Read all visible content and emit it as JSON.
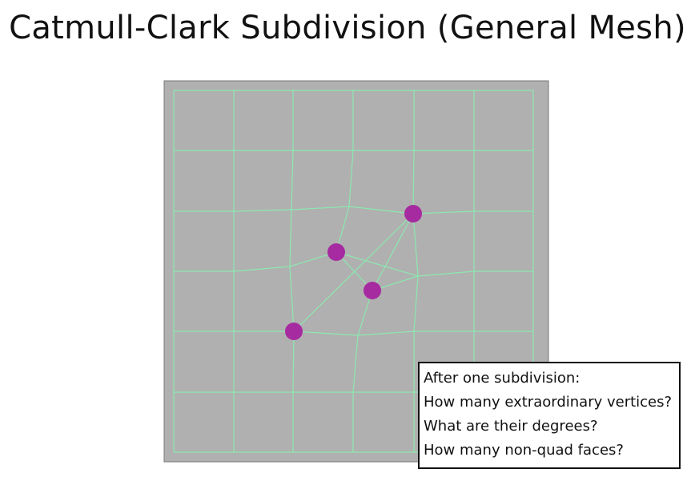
{
  "title": "Catmull-Clark Subdivision (General Mesh)",
  "colors": {
    "background": "#ffffff",
    "panel": "#b0b0b0",
    "mesh_line": "#8de8b0",
    "vertex": "#a62aa0"
  },
  "callout": {
    "lines": [
      "After one subdivision:",
      "How many extraordinary vertices?",
      "What are their degrees?",
      "How many non-quad faces?"
    ]
  }
}
